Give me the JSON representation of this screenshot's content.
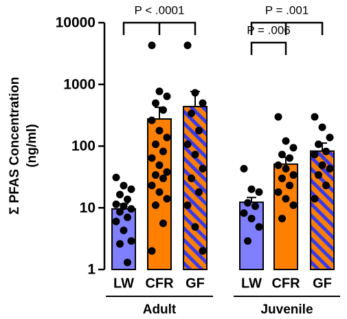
{
  "chart_data": {
    "type": "bar",
    "ylabel": [
      "Σ PFAS Concentration",
      "(ng/ml)"
    ],
    "log_scale": true,
    "ylim": [
      1,
      10000
    ],
    "yticks": [
      1,
      10,
      100,
      1000,
      10000
    ],
    "categories": [
      "LW",
      "CFR",
      "GF"
    ],
    "colors": [
      "#8080ff",
      "#ff8000",
      "#ff8000"
    ],
    "hatched": [
      false,
      false,
      true
    ],
    "hatch_color": "#3a3ae8",
    "groups": [
      {
        "name": "Adult",
        "values": [
          9.6,
          275,
          437
        ],
        "errors": [
          2,
          150,
          330
        ],
        "points": [
          [
            31,
            22.9,
            20,
            16.4,
            13.7,
            11.4,
            10.6,
            9.6,
            8.6,
            7,
            6,
            4.3,
            2.9,
            2.6,
            1.3
          ],
          [
            4290,
            770,
            640,
            497,
            385,
            262,
            178,
            138,
            107,
            82,
            64,
            49,
            38,
            34,
            30,
            23,
            18,
            14,
            11,
            5.6,
            2
          ],
          [
            4290,
            730,
            497,
            338,
            178,
            107,
            73,
            43,
            30,
            18,
            11,
            4.9,
            2
          ]
        ]
      },
      {
        "name": "Juvenile",
        "values": [
          12.3,
          51,
          83
        ],
        "errors": [
          2.4,
          15,
          29
        ],
        "points": [
          [
            43,
            20,
            18,
            12,
            10.6,
            8.2,
            6.7,
            4.9,
            2.9
          ],
          [
            298,
            121,
            94,
            73,
            64,
            49,
            43,
            34,
            30,
            23,
            18,
            14,
            11,
            6.7
          ],
          [
            298,
            202,
            138,
            107,
            82,
            73,
            49,
            43,
            34,
            23,
            14
          ]
        ]
      }
    ],
    "annotations": [
      {
        "text": "P < .0001",
        "group": 0,
        "from": 0,
        "to": 2
      },
      {
        "text": "P = .001",
        "group": 1,
        "from": 0,
        "to": 2
      },
      {
        "text": "P = .006",
        "group": 1,
        "from": 0,
        "to": 1
      }
    ]
  }
}
